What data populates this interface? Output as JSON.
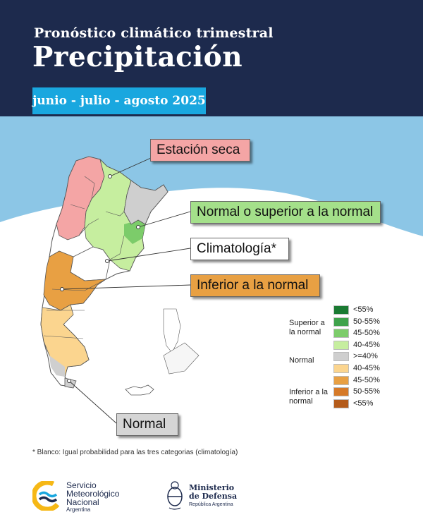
{
  "header": {
    "subtitle": "Pronóstico climático trimestral",
    "title": "Precipitación",
    "period": "junio - julio - agosto 2025"
  },
  "callouts": {
    "dry_season": "Estación seca",
    "normal_or_above": "Normal o superior a la normal",
    "climatology": "Climatología*",
    "below_normal": "Inferior a la normal",
    "normal": "Normal"
  },
  "legend": {
    "group_above": "Superior a la normal",
    "group_normal": "Normal",
    "group_below": "Inferior a la normal",
    "items": [
      {
        "label": "<55%",
        "color": "#1a7a32"
      },
      {
        "label": "50-55%",
        "color": "#3fa24b"
      },
      {
        "label": "45-50%",
        "color": "#7ccc6a"
      },
      {
        "label": "40-45%",
        "color": "#c6ee9f"
      },
      {
        "label": ">=40%",
        "color": "#cfcfcf"
      },
      {
        "label": "40-45%",
        "color": "#fbd58f"
      },
      {
        "label": "45-50%",
        "color": "#e8a043"
      },
      {
        "label": "50-55%",
        "color": "#d67a28"
      },
      {
        "label": "<55%",
        "color": "#b45b1a"
      }
    ]
  },
  "footnote": "* Blanco: Igual probabilidad para las tres categorias (climatología)",
  "logos": {
    "smn_line1": "Servicio",
    "smn_line2": "Meteorológico",
    "smn_line3": "Nacional",
    "smn_sub": "Argentina",
    "mindef_line1": "Ministerio",
    "mindef_line2": "de Defensa",
    "mindef_sub": "República Argentina"
  },
  "colors": {
    "header_bg": "#1d2a4d",
    "accent": "#19a7df",
    "sky": "#8cc6e6",
    "dry": "#f4a5a5",
    "normal_above": "#a4e08a",
    "below": "#e8a043",
    "normal_gray": "#cfcfcf"
  }
}
